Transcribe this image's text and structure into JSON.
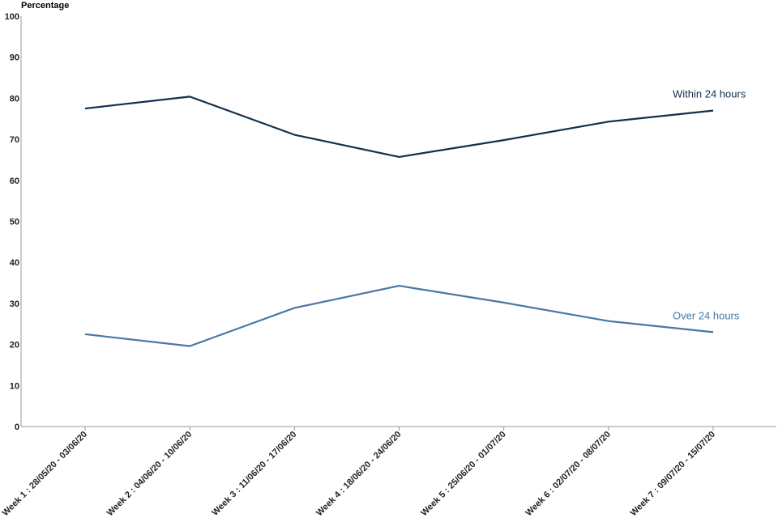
{
  "chart_data": {
    "type": "line",
    "ylabel": "Percentage",
    "xlabel": "",
    "ylim": [
      0,
      100
    ],
    "yticks": [
      0,
      10,
      20,
      30,
      40,
      50,
      60,
      70,
      80,
      90,
      100
    ],
    "grid": false,
    "legend": "inline labels at right end of lines",
    "categories": [
      "Week 1 : 28/05/20 - 03/06/20",
      "Week 2 : 04/06/20 - 10/06/20",
      "Week 3 : 11/06/20 - 17/06/20",
      "Week 4 : 18/06/20 - 24/06/20",
      "Week 5 : 25/06/20 - 01/07/20",
      "Week 6 : 02/07/20 - 08/07/20",
      "Week 7 : 09/07/20 - 15/07/20"
    ],
    "series": [
      {
        "name": "Within 24 hours",
        "color": "#12304d",
        "values": [
          77.5,
          80.4,
          71.1,
          65.7,
          69.8,
          74.3,
          77.0
        ]
      },
      {
        "name": "Over 24 hours",
        "color": "#4a77a3",
        "values": [
          22.5,
          19.6,
          28.9,
          34.3,
          30.2,
          25.7,
          23.0
        ]
      }
    ]
  }
}
